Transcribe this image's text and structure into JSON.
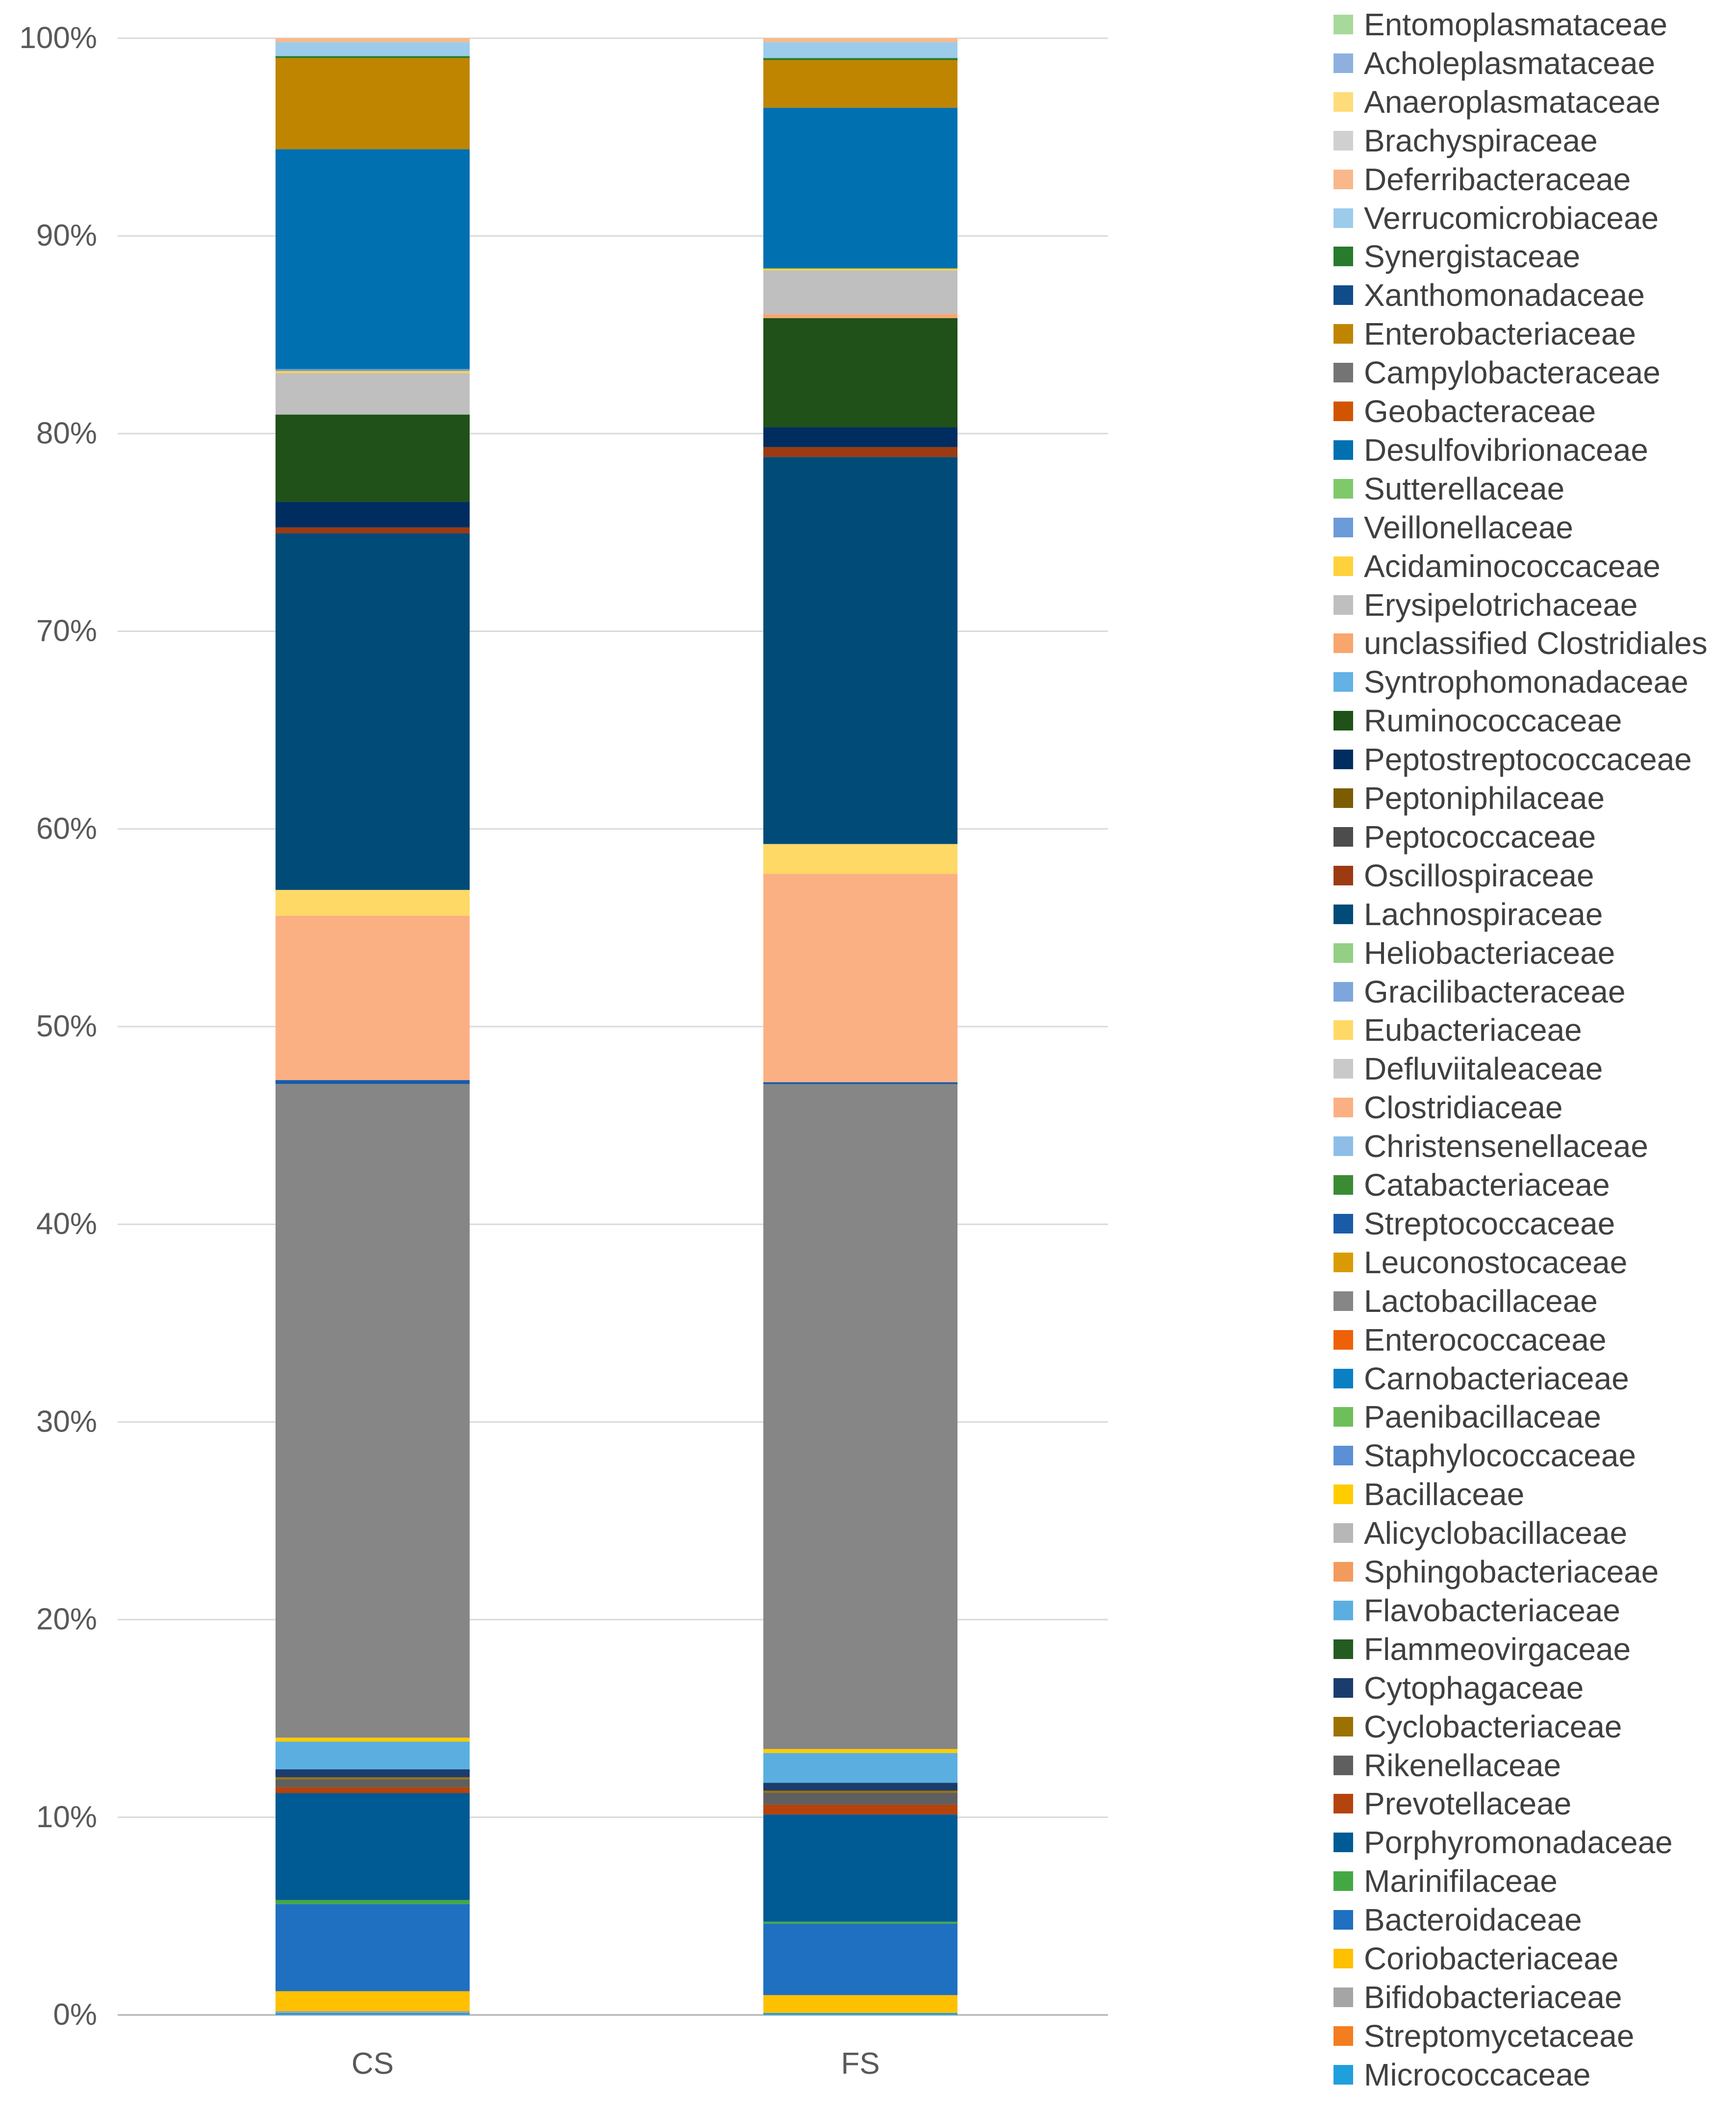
{
  "chart_data": {
    "type": "bar",
    "stacked": true,
    "percent_stacked": true,
    "categories": [
      "CS",
      "FS"
    ],
    "ylim": [
      0,
      100
    ],
    "yticks": [
      "0%",
      "10%",
      "20%",
      "30%",
      "40%",
      "50%",
      "60%",
      "70%",
      "80%",
      "90%",
      "100%"
    ],
    "grid": true,
    "legend_position": "right",
    "series": [
      {
        "name": "Micrococcaceae",
        "color": "#1f9fdc",
        "values": [
          0.1,
          0.1
        ]
      },
      {
        "name": "Streptomycetaceae",
        "color": "#f47d20",
        "values": [
          0.0,
          0.0
        ]
      },
      {
        "name": "Bifidobacteriaceae",
        "color": "#a5a5a5",
        "values": [
          0.1,
          0.0
        ]
      },
      {
        "name": "Coriobacteriaceae",
        "color": "#ffc000",
        "values": [
          1.0,
          0.9
        ]
      },
      {
        "name": "Bacteroidaceae",
        "color": "#1f70c1",
        "values": [
          4.4,
          3.6
        ]
      },
      {
        "name": "Marinifilaceae",
        "color": "#43a843",
        "values": [
          0.2,
          0.1
        ]
      },
      {
        "name": "Porphyromonadaceae",
        "color": "#005a93",
        "values": [
          5.4,
          5.4
        ]
      },
      {
        "name": "Prevotellaceae",
        "color": "#b5430d",
        "values": [
          0.3,
          0.5
        ]
      },
      {
        "name": "Rikenellaceae",
        "color": "#5f5f5f",
        "values": [
          0.4,
          0.6
        ]
      },
      {
        "name": "Cyclobacteriaceae",
        "color": "#9b7200",
        "values": [
          0.1,
          0.1
        ]
      },
      {
        "name": "Cytophagaceae",
        "color": "#1b3d6e",
        "values": [
          0.4,
          0.4
        ]
      },
      {
        "name": "Flammeovirgaceae",
        "color": "#245b21",
        "values": [
          0.0,
          0.0
        ]
      },
      {
        "name": "Flavobacteriaceae",
        "color": "#5aafe0",
        "values": [
          1.4,
          1.5
        ]
      },
      {
        "name": "Sphingobacteriaceae",
        "color": "#f39a5d",
        "values": [
          0.0,
          0.0
        ]
      },
      {
        "name": "Alicyclobacillaceae",
        "color": "#b7b7b7",
        "values": [
          0.0,
          0.0
        ]
      },
      {
        "name": "Bacillaceae",
        "color": "#ffcc00",
        "values": [
          0.2,
          0.2
        ]
      },
      {
        "name": "Staphylococcaceae",
        "color": "#5b8fd6",
        "values": [
          0.0,
          0.0
        ]
      },
      {
        "name": "Paenibacillaceae",
        "color": "#6ebf5c",
        "values": [
          0.0,
          0.0
        ]
      },
      {
        "name": "Carnobacteriaceae",
        "color": "#0b7fc4",
        "values": [
          0.0,
          0.0
        ]
      },
      {
        "name": "Enterococcaceae",
        "color": "#ee6109",
        "values": [
          0.0,
          0.0
        ]
      },
      {
        "name": "Lactobacillaceae",
        "color": "#868686",
        "values": [
          33.0,
          33.5
        ]
      },
      {
        "name": "Leuconostocaceae",
        "color": "#d99b05",
        "values": [
          0.0,
          0.0
        ]
      },
      {
        "name": "Streptococcaceae",
        "color": "#1a5ba8",
        "values": [
          0.2,
          0.1
        ]
      },
      {
        "name": "Catabacteriaceae",
        "color": "#3b8b35",
        "values": [
          0.0,
          0.0
        ]
      },
      {
        "name": "Christensenellaceae",
        "color": "#8ebee8",
        "values": [
          0.0,
          0.0
        ]
      },
      {
        "name": "Clostridiaceae",
        "color": "#fbb083",
        "values": [
          8.3,
          10.5
        ]
      },
      {
        "name": "Defluviitaleaceae",
        "color": "#c9c9c9",
        "values": [
          0.0,
          0.0
        ]
      },
      {
        "name": "Eubacteriaceae",
        "color": "#ffd966",
        "values": [
          1.3,
          1.5
        ]
      },
      {
        "name": "Gracilibacteraceae",
        "color": "#7ea6dd",
        "values": [
          0.0,
          0.0
        ]
      },
      {
        "name": "Heliobacteriaceae",
        "color": "#93cf84",
        "values": [
          0.0,
          0.0
        ]
      },
      {
        "name": "Lachnospiraceae",
        "color": "#004b78",
        "values": [
          18.0,
          19.5
        ]
      },
      {
        "name": "Oscillospiraceae",
        "color": "#9c3a12",
        "values": [
          0.3,
          0.5
        ]
      },
      {
        "name": "Peptococcaceae",
        "color": "#4c4c4c",
        "values": [
          0.0,
          0.0
        ]
      },
      {
        "name": "Peptoniphilaceae",
        "color": "#7b5c00",
        "values": [
          0.0,
          0.0
        ]
      },
      {
        "name": "Peptostreptococcaceae",
        "color": "#002d5f",
        "values": [
          1.3,
          1.0
        ]
      },
      {
        "name": "Ruminococcaceae",
        "color": "#1f5118",
        "values": [
          4.4,
          5.5
        ]
      },
      {
        "name": "Syntrophomonadaceae",
        "color": "#63b1e5",
        "values": [
          0.0,
          0.0
        ]
      },
      {
        "name": "unclassified Clostridiales",
        "color": "#f9a56e",
        "values": [
          0.0,
          0.2
        ]
      },
      {
        "name": "Erysipelotrichaceae",
        "color": "#bfbfbf",
        "values": [
          2.1,
          2.2
        ]
      },
      {
        "name": "Acidaminococcaceae",
        "color": "#ffd23c",
        "values": [
          0.1,
          0.1
        ]
      },
      {
        "name": "Veillonellaceae",
        "color": "#6b9bd8",
        "values": [
          0.1,
          0.0
        ]
      },
      {
        "name": "Sutterellaceae",
        "color": "#7fc96a",
        "values": [
          0.0,
          0.0
        ]
      },
      {
        "name": "Desulfovibrionaceae",
        "color": "#0070b0",
        "values": [
          11.1,
          8.1
        ]
      },
      {
        "name": "Geobacteraceae",
        "color": "#d35400",
        "values": [
          0.0,
          0.0
        ]
      },
      {
        "name": "Campylobacteraceae",
        "color": "#747474",
        "values": [
          0.0,
          0.0
        ]
      },
      {
        "name": "Enterobacteriaceae",
        "color": "#bf8500",
        "values": [
          4.6,
          2.4
        ]
      },
      {
        "name": "Xanthomonadaceae",
        "color": "#114c8a",
        "values": [
          0.0,
          0.0
        ]
      },
      {
        "name": "Synergistaceae",
        "color": "#287a2c",
        "values": [
          0.1,
          0.1
        ]
      },
      {
        "name": "Verrucomicrobiaceae",
        "color": "#9dcbeb",
        "values": [
          0.7,
          0.8
        ]
      },
      {
        "name": "Deferribacteraceae",
        "color": "#f8b88b",
        "values": [
          0.2,
          0.2
        ]
      },
      {
        "name": "Brachyspiraceae",
        "color": "#d0d0d0",
        "values": [
          0.0,
          0.0
        ]
      },
      {
        "name": "Anaeroplasmataceae",
        "color": "#ffdc7a",
        "values": [
          0.0,
          0.0
        ]
      },
      {
        "name": "Acholeplasmataceae",
        "color": "#8fb0df",
        "values": [
          0.0,
          0.0
        ]
      },
      {
        "name": "Entomoplasmataceae",
        "color": "#a6d99a",
        "values": [
          0.0,
          0.0
        ]
      }
    ]
  }
}
